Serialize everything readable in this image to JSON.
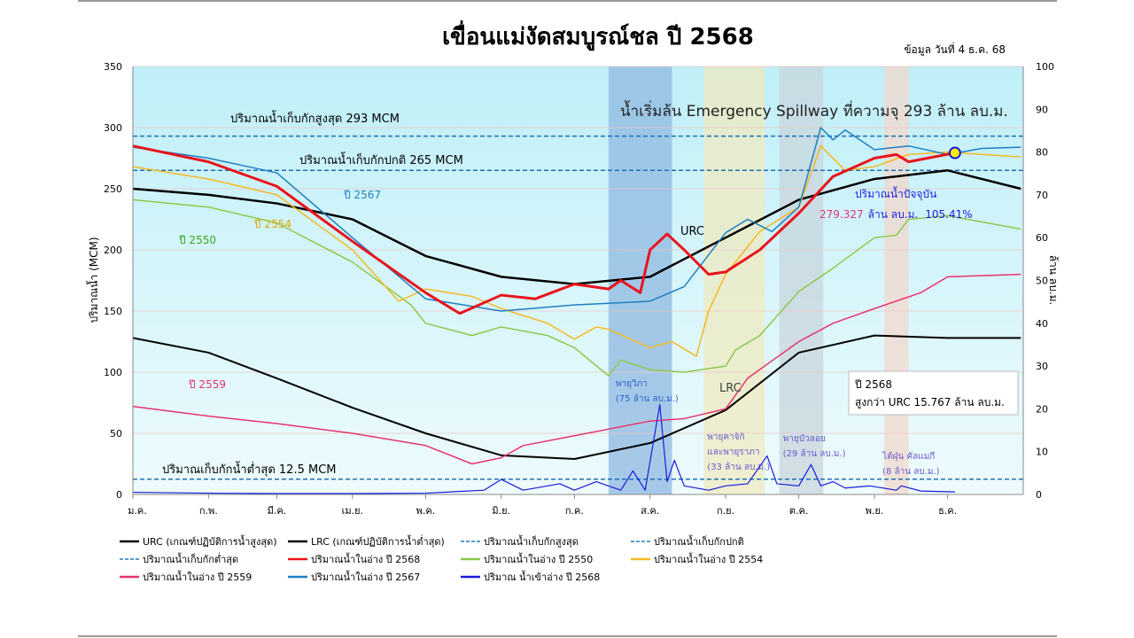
{
  "chart_data": {
    "type": "line",
    "title": "เขื่อนแม่งัดสมบูรณ์ชล ปี 2568",
    "subtitle": "ข้อมูล วันที่  4 ธ.ค. 68",
    "ylabel": "ปริมาณน้ำ (MCM)",
    "y2label": "ล้าน ลบ.ม.",
    "ylim": [
      0,
      350
    ],
    "y2lim": [
      0,
      100
    ],
    "yticks": [
      0,
      50,
      100,
      150,
      200,
      250,
      300,
      350
    ],
    "y2ticks": [
      0,
      10,
      20,
      30,
      40,
      50,
      60,
      70,
      80,
      90,
      100
    ],
    "xticks": [
      "ม.ค.",
      "ก.พ.",
      "มี.ค.",
      "เม.ย.",
      "พ.ค.",
      "มิ.ย.",
      "ก.ค.",
      "ส.ค.",
      "ก.ย.",
      "ต.ค.",
      "พ.ย.",
      "ธ.ค."
    ],
    "grid": true,
    "legend_placement": "bottom",
    "hlines": [
      {
        "name": "ปริมาณน้ำเก็บกักสูงสุด",
        "value": 293,
        "label": "ปริมาณน้ำเก็บกักสูงสุด 293 MCM",
        "color": "#1f6fb5"
      },
      {
        "name": "ปริมาณน้ำเก็บกักปกติ",
        "value": 265,
        "label": "ปริมาณน้ำเก็บกักปกติ 265 MCM",
        "color": "#1f6fb5"
      },
      {
        "name": "ปริมาณน้ำเก็บกักต่ำสุด",
        "value": 12.5,
        "label": "ปริมาณเก็บกักน้ำต่ำสุด 12.5 MCM",
        "color": "#1f6fb5"
      }
    ],
    "bands": [
      {
        "from": "07-15",
        "to": "08-10",
        "color": "#8fb8e0",
        "label": "พายุวิภา",
        "label2": "(75 ล้าน ลบ.ม.)"
      },
      {
        "from": "08-23",
        "to": "09-17",
        "color": "#efeac0",
        "label": "พายุคาจิกิ",
        "label2": "และพายุราภา",
        "label3": "(33 ล้าน ลบ.ม.)"
      },
      {
        "from": "09-23",
        "to": "10-11",
        "color": "#c8d6dc",
        "label": "พายุบัวลอย",
        "label2": "(29 ล้าน ลบ.ม.)"
      },
      {
        "from": "11-05",
        "to": "11-15",
        "color": "#f2d8cc",
        "label": "ไต้ฝุ่น คัลแมกี",
        "label2": "(8 ล้าน ลบ.ม.)"
      }
    ],
    "series": [
      {
        "name": "URC (เกณฑ์ปฏิบัติการน้ำสูงสุด)",
        "color": "#000000",
        "width": 2.5,
        "axis": "left",
        "points": [
          [
            "01-01",
            250
          ],
          [
            "02-01",
            245
          ],
          [
            "03-01",
            238
          ],
          [
            "04-01",
            225
          ],
          [
            "05-01",
            195
          ],
          [
            "06-01",
            178
          ],
          [
            "07-01",
            172
          ],
          [
            "08-01",
            178
          ],
          [
            "09-01",
            210
          ],
          [
            "10-01",
            241
          ],
          [
            "11-01",
            258
          ],
          [
            "12-01",
            265
          ],
          [
            "12-31",
            250
          ]
        ]
      },
      {
        "name": "LRC (เกณฑ์ปฏิบัติการน้ำต่ำสุด)",
        "color": "#000000",
        "width": 2,
        "axis": "left",
        "points": [
          [
            "01-01",
            128
          ],
          [
            "02-01",
            116
          ],
          [
            "03-01",
            95
          ],
          [
            "04-01",
            71
          ],
          [
            "05-01",
            50
          ],
          [
            "06-01",
            32
          ],
          [
            "07-01",
            29
          ],
          [
            "08-01",
            42
          ],
          [
            "09-01",
            69
          ],
          [
            "10-01",
            116
          ],
          [
            "11-01",
            130
          ],
          [
            "12-01",
            128
          ],
          [
            "12-31",
            128
          ]
        ]
      },
      {
        "name": "ปริมาณน้ำในอ่าง ปี 2550",
        "color": "#8cc84b",
        "width": 1.5,
        "axis": "left",
        "points": [
          [
            "01-01",
            241
          ],
          [
            "02-01",
            235
          ],
          [
            "03-01",
            222
          ],
          [
            "04-01",
            190
          ],
          [
            "04-25",
            155
          ],
          [
            "05-01",
            140
          ],
          [
            "05-20",
            130
          ],
          [
            "06-01",
            137
          ],
          [
            "06-20",
            130
          ],
          [
            "07-01",
            120
          ],
          [
            "07-15",
            97
          ],
          [
            "07-20",
            110
          ],
          [
            "08-01",
            102
          ],
          [
            "08-15",
            100
          ],
          [
            "09-01",
            105
          ],
          [
            "09-05",
            118
          ],
          [
            "09-15",
            130
          ],
          [
            "10-01",
            166
          ],
          [
            "10-15",
            185
          ],
          [
            "11-01",
            210
          ],
          [
            "11-10",
            212
          ],
          [
            "11-15",
            225
          ],
          [
            "12-01",
            228
          ],
          [
            "12-31",
            217
          ]
        ]
      },
      {
        "name": "ปริมาณน้ำในอ่าง ปี 2554",
        "color": "#f5b820",
        "width": 1.5,
        "axis": "left",
        "points": [
          [
            "01-01",
            268
          ],
          [
            "02-01",
            258
          ],
          [
            "03-01",
            245
          ],
          [
            "04-01",
            200
          ],
          [
            "04-20",
            158
          ],
          [
            "05-01",
            168
          ],
          [
            "05-20",
            162
          ],
          [
            "06-01",
            152
          ],
          [
            "06-20",
            140
          ],
          [
            "07-01",
            127
          ],
          [
            "07-10",
            137
          ],
          [
            "07-15",
            135
          ],
          [
            "08-01",
            120
          ],
          [
            "08-10",
            125
          ],
          [
            "08-20",
            113
          ],
          [
            "08-25",
            150
          ],
          [
            "09-01",
            180
          ],
          [
            "09-15",
            215
          ],
          [
            "10-01",
            235
          ],
          [
            "10-10",
            285
          ],
          [
            "10-20",
            265
          ],
          [
            "11-01",
            268
          ],
          [
            "11-15",
            278
          ],
          [
            "12-01",
            280
          ],
          [
            "12-31",
            276
          ]
        ]
      },
      {
        "name": "ปริมาณน้ำในอ่าง ปี 2559",
        "color": "#e8336f",
        "width": 1.5,
        "axis": "left",
        "points": [
          [
            "01-01",
            72
          ],
          [
            "02-01",
            64
          ],
          [
            "03-01",
            58
          ],
          [
            "04-01",
            50
          ],
          [
            "05-01",
            40
          ],
          [
            "05-20",
            25
          ],
          [
            "06-01",
            30
          ],
          [
            "06-10",
            40
          ],
          [
            "07-01",
            48
          ],
          [
            "08-01",
            60
          ],
          [
            "08-15",
            62
          ],
          [
            "09-01",
            70
          ],
          [
            "09-10",
            95
          ],
          [
            "10-01",
            125
          ],
          [
            "10-15",
            140
          ],
          [
            "11-01",
            152
          ],
          [
            "11-20",
            165
          ],
          [
            "12-01",
            178
          ],
          [
            "12-31",
            180
          ]
        ]
      },
      {
        "name": "ปริมาณน้ำในอ่าง ปี 2567",
        "color": "#1f7fc0",
        "width": 1.5,
        "axis": "left",
        "points": [
          [
            "01-01",
            284
          ],
          [
            "02-01",
            275
          ],
          [
            "03-01",
            263
          ],
          [
            "04-01",
            210
          ],
          [
            "05-01",
            160
          ],
          [
            "06-01",
            150
          ],
          [
            "07-01",
            155
          ],
          [
            "08-01",
            158
          ],
          [
            "08-15",
            170
          ],
          [
            "09-01",
            214
          ],
          [
            "09-10",
            225
          ],
          [
            "09-20",
            215
          ],
          [
            "10-01",
            235
          ],
          [
            "10-10",
            300
          ],
          [
            "10-15",
            290
          ],
          [
            "10-20",
            298
          ],
          [
            "11-01",
            282
          ],
          [
            "11-15",
            285
          ],
          [
            "12-01",
            278
          ],
          [
            "12-15",
            283
          ],
          [
            "12-31",
            284
          ]
        ]
      },
      {
        "name": "ปริมาณน้ำในอ่าง ปี 2568",
        "color": "#e8141c",
        "width": 3,
        "axis": "left",
        "points": [
          [
            "01-01",
            285
          ],
          [
            "02-01",
            272
          ],
          [
            "03-01",
            252
          ],
          [
            "04-01",
            207
          ],
          [
            "05-01",
            165
          ],
          [
            "05-15",
            148
          ],
          [
            "06-01",
            163
          ],
          [
            "06-15",
            160
          ],
          [
            "07-01",
            172
          ],
          [
            "07-15",
            168
          ],
          [
            "07-20",
            175
          ],
          [
            "07-28",
            165
          ],
          [
            "08-01",
            200
          ],
          [
            "08-08",
            213
          ],
          [
            "08-15",
            200
          ],
          [
            "08-25",
            180
          ],
          [
            "09-01",
            182
          ],
          [
            "09-15",
            200
          ],
          [
            "10-01",
            230
          ],
          [
            "10-15",
            260
          ],
          [
            "11-01",
            275
          ],
          [
            "11-10",
            278
          ],
          [
            "11-15",
            272
          ],
          [
            "12-04",
            279.327
          ]
        ]
      },
      {
        "name": "ปริมาณ น้ำเข้าอ่าง ปี 2568",
        "color": "#1a1adc",
        "width": 1.2,
        "axis": "right",
        "points": [
          [
            "01-01",
            0.5
          ],
          [
            "02-01",
            0.3
          ],
          [
            "03-01",
            0.2
          ],
          [
            "04-01",
            0.2
          ],
          [
            "05-01",
            0.3
          ],
          [
            "05-25",
            1
          ],
          [
            "06-01",
            3.5
          ],
          [
            "06-10",
            1
          ],
          [
            "06-25",
            2.5
          ],
          [
            "07-01",
            1
          ],
          [
            "07-10",
            3
          ],
          [
            "07-20",
            1
          ],
          [
            "07-25",
            5.5
          ],
          [
            "07-30",
            1
          ],
          [
            "08-05",
            21
          ],
          [
            "08-08",
            3
          ],
          [
            "08-11",
            8
          ],
          [
            "08-15",
            2
          ],
          [
            "08-25",
            1
          ],
          [
            "09-01",
            2
          ],
          [
            "09-10",
            2.5
          ],
          [
            "09-18",
            9
          ],
          [
            "09-22",
            2.5
          ],
          [
            "10-01",
            2
          ],
          [
            "10-06",
            7
          ],
          [
            "10-10",
            2
          ],
          [
            "10-15",
            3
          ],
          [
            "10-20",
            1.5
          ],
          [
            "10-30",
            2
          ],
          [
            "11-10",
            1
          ],
          [
            "11-12",
            2
          ],
          [
            "11-20",
            0.8
          ],
          [
            "12-04",
            0.6
          ]
        ]
      }
    ],
    "current_marker": {
      "date": "12-04",
      "value": 279.327,
      "color": "#ffee00"
    },
    "annotations": {
      "spillway": "น้ำเริ่มล้น Emergency Spillway ที่ความจุ 293 ล้าน ลบ.ม.",
      "current_title": "ปริมาณน้ำปัจจุบัน",
      "current_value": "279.327",
      "current_unit": "ล้าน ลบ.ม.",
      "current_percent": "105.41%",
      "urc_label": "URC",
      "lrc_label": "LRC",
      "y2567": "ปี 2567",
      "y2554": "ปี 2554",
      "y2550": "ปี 2550",
      "y2559": "ปี 2559",
      "box_line1": "ปี 2568",
      "box_line2": "สูงกว่า URC 15.767 ล้าน ลบ.ม."
    },
    "legend": [
      {
        "label": "URC (เกณฑ์ปฏิบัติการน้ำสูงสุด)",
        "color": "#000000",
        "dash": false
      },
      {
        "label": "LRC (เกณฑ์ปฏิบัติการน้ำต่ำสุด)",
        "color": "#000000",
        "dash": false
      },
      {
        "label": "ปริมาณน้ำเก็บกักสูงสุด",
        "color": "#1f7fc0",
        "dash": true
      },
      {
        "label": "ปริมาณน้ำเก็บกักปกติ",
        "color": "#1f7fc0",
        "dash": true
      },
      {
        "label": "ปริมาณน้ำเก็บกักต่ำสุด",
        "color": "#1f7fc0",
        "dash": true
      },
      {
        "label": "ปริมาณน้ำในอ่าง ปี 2568",
        "color": "#e8141c",
        "dash": false
      },
      {
        "label": "ปริมาณน้ำในอ่าง ปี 2550",
        "color": "#8cc84b",
        "dash": false
      },
      {
        "label": "ปริมาณน้ำในอ่าง ปี 2554",
        "color": "#f5b820",
        "dash": false
      },
      {
        "label": "ปริมาณน้ำในอ่าง ปี 2559",
        "color": "#e8336f",
        "dash": false
      },
      {
        "label": "ปริมาณน้ำในอ่าง ปี 2567",
        "color": "#1f7fc0",
        "dash": false
      },
      {
        "label": "ปริมาณ น้ำเข้าอ่าง ปี 2568",
        "color": "#1a1adc",
        "dash": false
      }
    ]
  }
}
